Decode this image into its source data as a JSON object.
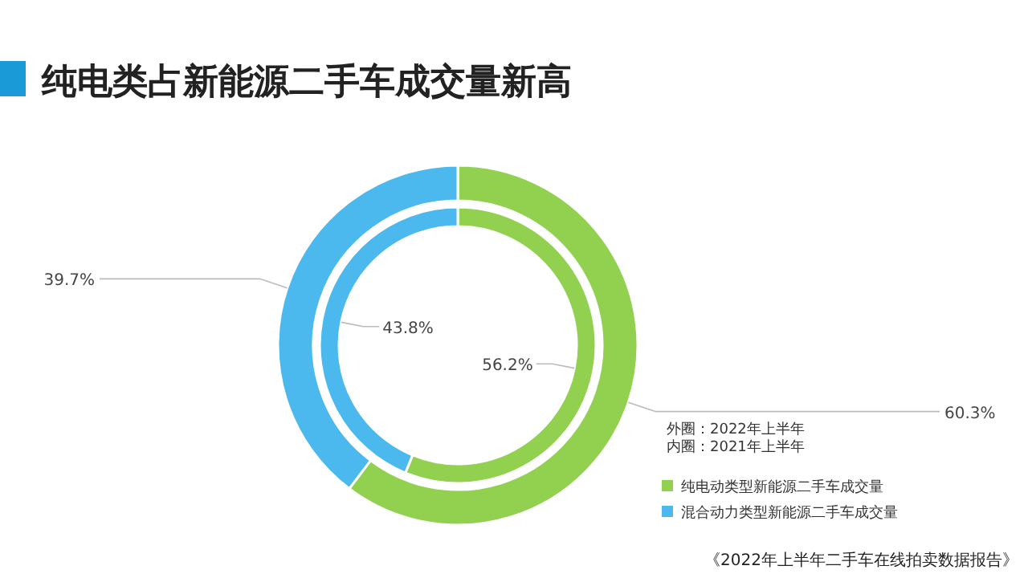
{
  "chart_data": {
    "type": "donut",
    "title": "纯电类占新能源二手车成交量新高",
    "categories": [
      "纯电动类型新能源二手车成交量",
      "混合动力类型新能源二手车成交量"
    ],
    "colors": [
      "#92d050",
      "#4bb8ee"
    ],
    "series": [
      {
        "values": [
          60.3,
          39.7
        ],
        "value_labels": [
          "60.3%",
          "39.7%"
        ]
      },
      {
        "values": [
          56.2,
          43.8
        ],
        "value_labels": [
          "56.2%",
          "43.8%"
        ]
      }
    ],
    "legend": "bottom right",
    "annotations": [
      "外圈：2022年上半年",
      "内圈：2021年上半年",
      "《2022年上半年二手车在线拍卖数据报告》"
    ]
  }
}
